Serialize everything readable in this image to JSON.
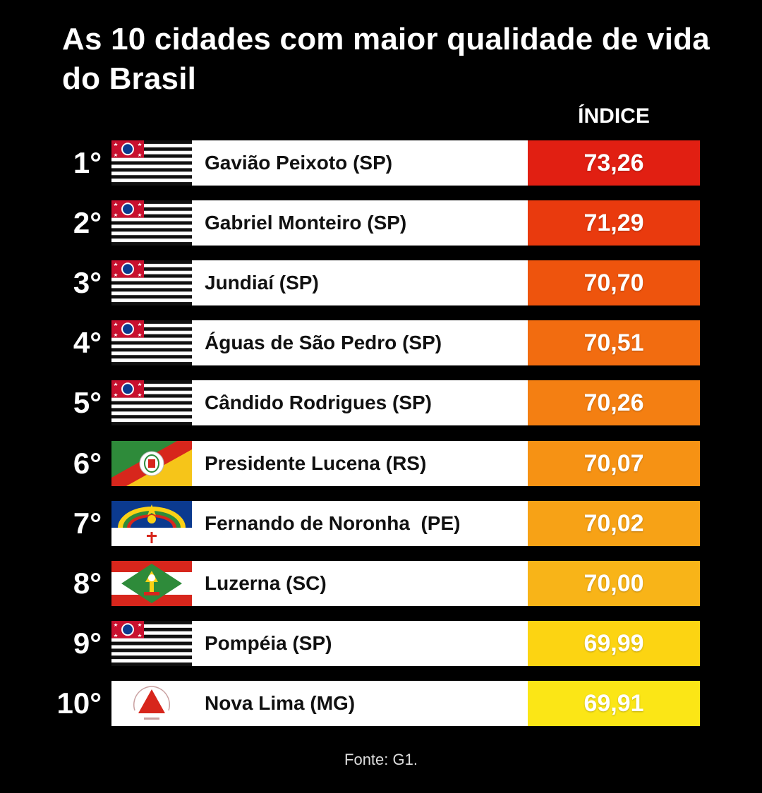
{
  "title": "As 10 cidades com maior qualidade de vida do Brasil",
  "footer": "Fonte: G1.",
  "chart_data": {
    "type": "table",
    "title": "As 10 cidades com maior qualidade de vida do Brasil",
    "value_header": "ÍNDICE",
    "rows": [
      {
        "rank": "1°",
        "city": "Gavião Peixoto (SP)",
        "value": "73,26",
        "flag": "sp-flag-icon",
        "color": "#e11f12"
      },
      {
        "rank": "2°",
        "city": "Gabriel Monteiro (SP)",
        "value": "71,29",
        "flag": "sp-flag-icon",
        "color": "#e93a0e"
      },
      {
        "rank": "3°",
        "city": "Jundiaí (SP)",
        "value": "70,70",
        "flag": "sp-flag-icon",
        "color": "#ee540d"
      },
      {
        "rank": "4°",
        "city": "Águas de São Pedro (SP)",
        "value": "70,51",
        "flag": "sp-flag-icon",
        "color": "#f26c10"
      },
      {
        "rank": "5°",
        "city": "Cândido Rodrigues (SP)",
        "value": "70,26",
        "flag": "sp-flag-icon",
        "color": "#f47f12"
      },
      {
        "rank": "6°",
        "city": "Presidente Lucena (RS)",
        "value": "70,07",
        "flag": "rs-flag-icon",
        "color": "#f69214"
      },
      {
        "rank": "7°",
        "city": "Fernando de Noronha  (PE)",
        "value": "70,02",
        "flag": "pe-flag-icon",
        "color": "#f7a216"
      },
      {
        "rank": "8°",
        "city": "Luzerna (SC)",
        "value": "70,00",
        "flag": "sc-flag-icon",
        "color": "#f8b418"
      },
      {
        "rank": "9°",
        "city": "Pompéia (SP)",
        "value": "69,99",
        "flag": "sp-flag-icon",
        "color": "#fcd412"
      },
      {
        "rank": "10°",
        "city": "Nova Lima (MG)",
        "value": "69,91",
        "flag": "mg-flag-icon",
        "color": "#fbe616"
      }
    ]
  }
}
